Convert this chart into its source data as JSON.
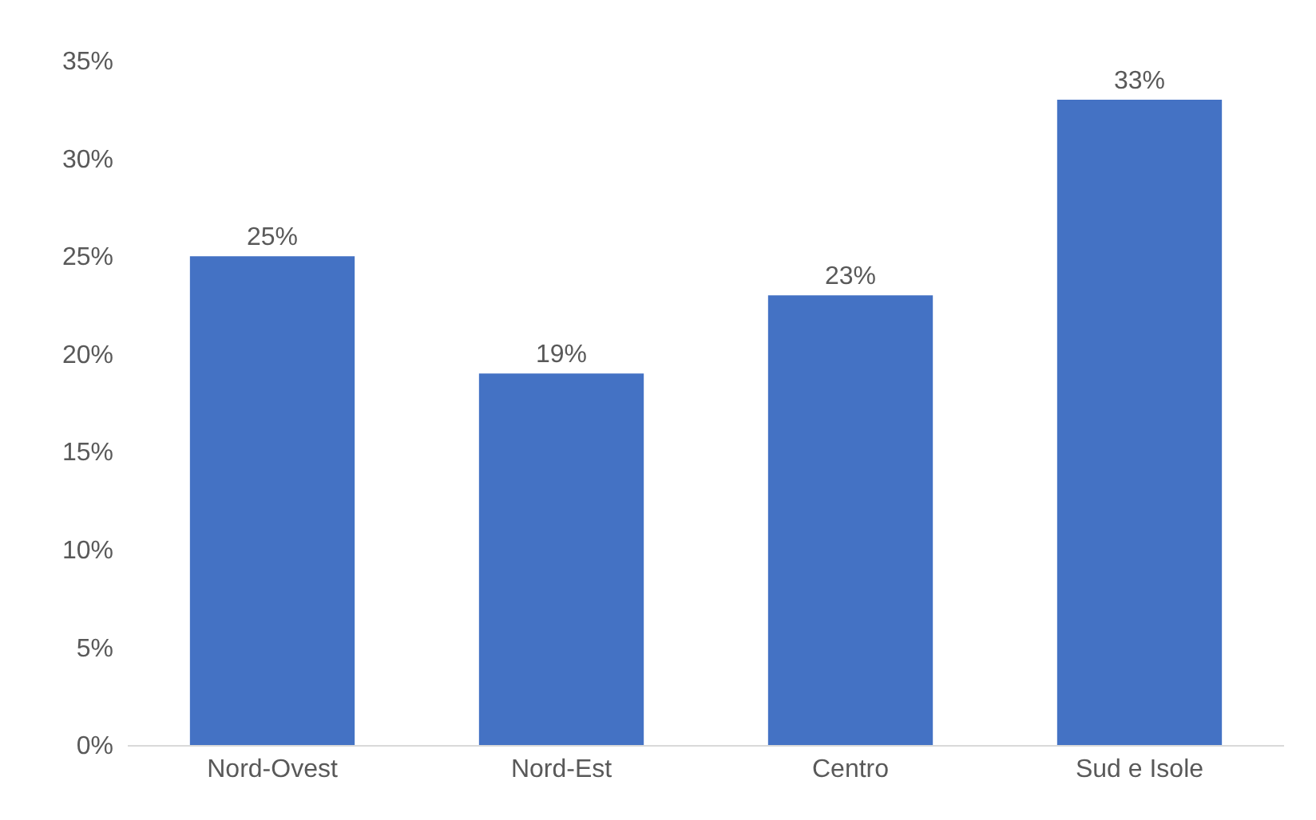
{
  "chart_data": {
    "type": "bar",
    "categories": [
      "Nord-Ovest",
      "Nord-Est",
      "Centro",
      "Sud e Isole"
    ],
    "values": [
      25,
      19,
      23,
      33
    ],
    "value_labels": [
      "25%",
      "19%",
      "23%",
      "33%"
    ],
    "color": "#4472c4",
    "ylim": [
      0,
      35
    ],
    "yticks": [
      {
        "value": 0,
        "label": "0%"
      },
      {
        "value": 5,
        "label": "5%"
      },
      {
        "value": 10,
        "label": "10%"
      },
      {
        "value": 15,
        "label": "15%"
      },
      {
        "value": 20,
        "label": "20%"
      },
      {
        "value": 25,
        "label": "25%"
      },
      {
        "value": 30,
        "label": "30%"
      },
      {
        "value": 35,
        "label": "35%"
      }
    ],
    "grid": false
  }
}
